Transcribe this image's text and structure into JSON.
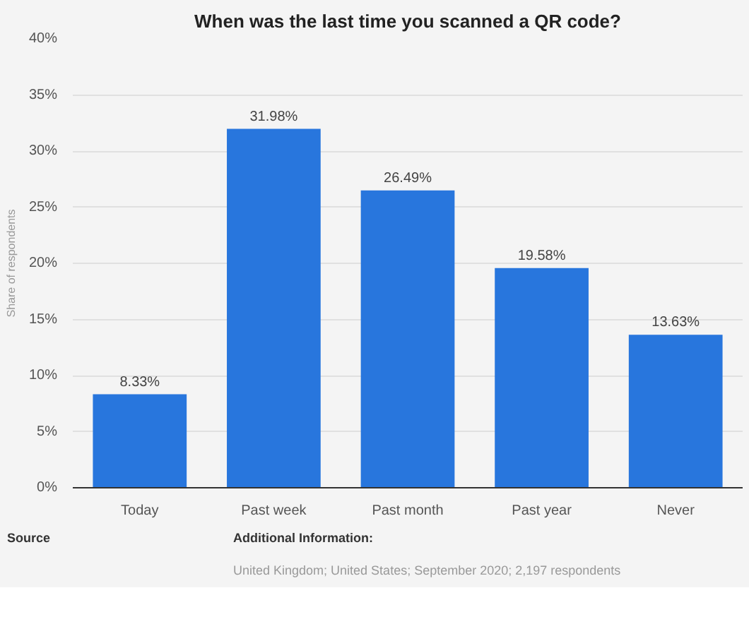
{
  "chart_data": {
    "type": "bar",
    "title": "When was the last time you scanned a QR code?",
    "ylabel": "Share of respondents",
    "categories": [
      "Today",
      "Past week",
      "Past month",
      "Past year",
      "Never"
    ],
    "values": [
      8.33,
      31.98,
      26.49,
      19.58,
      13.63
    ],
    "value_labels": [
      "8.33%",
      "31.98%",
      "26.49%",
      "19.58%",
      "13.63%"
    ],
    "color": "#2876dd",
    "ylim": [
      0,
      40
    ],
    "yticks": [
      {
        "value": 0,
        "label": "0%"
      },
      {
        "value": 5,
        "label": "5%"
      },
      {
        "value": 10,
        "label": "10%"
      },
      {
        "value": 15,
        "label": "15%"
      },
      {
        "value": 20,
        "label": "20%"
      },
      {
        "value": 25,
        "label": "25%"
      },
      {
        "value": 30,
        "label": "30%"
      },
      {
        "value": 35,
        "label": "35%"
      },
      {
        "value": 40,
        "label": "40%"
      }
    ],
    "grid": "y",
    "annotations": [
      "Source",
      "Additional Information:",
      "United Kingdom; United States; September 2020; 2,197 respondents"
    ]
  }
}
